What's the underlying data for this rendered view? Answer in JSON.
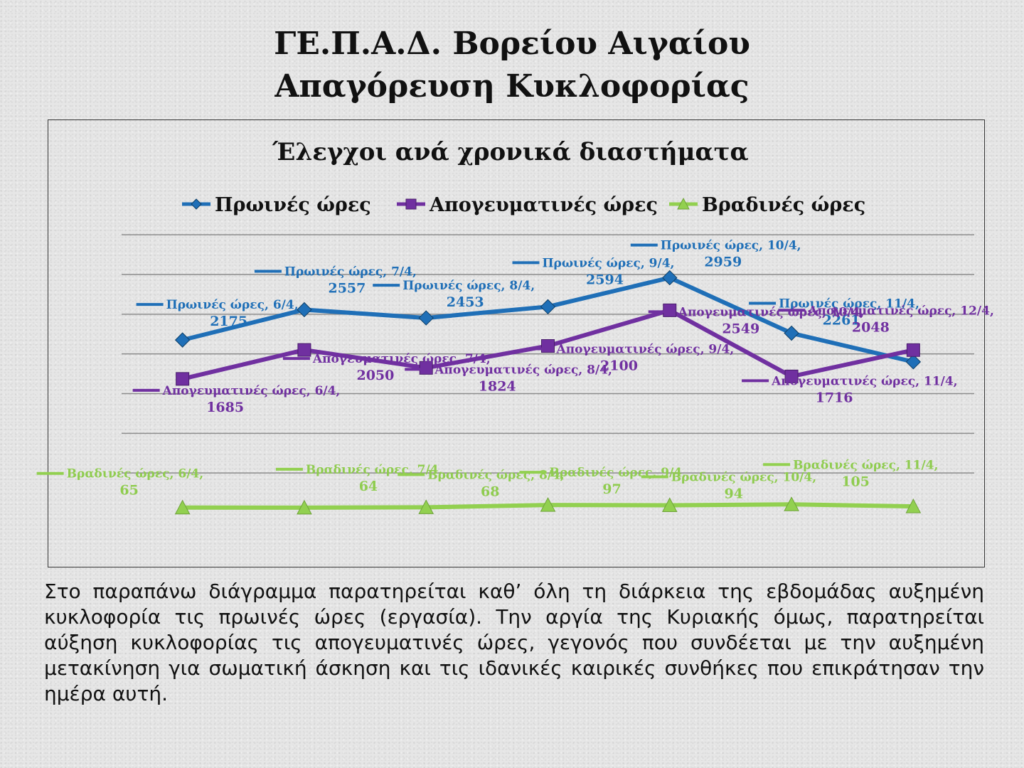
{
  "heading": {
    "line1": "ΓΕ.Π.Α.Δ. Βορείου Αιγαίου",
    "line2": "Απαγόρευση Κυκλοφορίας"
  },
  "chart_data": {
    "type": "line",
    "title": "Έλεγχοι ανά χρονικά διαστήματα",
    "categories": [
      "6/4",
      "7/4",
      "8/4",
      "9/4",
      "10/4",
      "11/4",
      "12/4"
    ],
    "series": [
      {
        "name": "Πρωινές ώρες",
        "color": "#1f6fb7",
        "marker": "diamond",
        "values": [
          2175,
          2557,
          2453,
          2594,
          2959,
          2261,
          1900
        ]
      },
      {
        "name": "Απογευματινές ώρες",
        "color": "#7030a0",
        "marker": "square",
        "values": [
          1685,
          2050,
          1824,
          2100,
          2549,
          1716,
          2048
        ]
      },
      {
        "name": "Βραδινές ώρες",
        "color": "#92d050",
        "marker": "triangle",
        "values": [
          65,
          64,
          68,
          97,
          94,
          105,
          80
        ]
      }
    ],
    "point_label_values": {
      "Πρωινές ώρες": [
        "2175",
        "2557",
        "2453",
        "2594",
        "2959",
        "2261",
        ""
      ],
      "Απογευματινές ώρες": [
        "1685",
        "2050",
        "1824",
        "2100",
        "2549",
        "1716",
        "2048"
      ],
      "Βραδινές ώρες": [
        "65",
        "64",
        "68",
        "97",
        "94",
        "105",
        ""
      ]
    },
    "ylim": [
      0,
      3600
    ],
    "grid": true,
    "legend_position": "top"
  },
  "body_text": "Στο παραπάνω διάγραμμα παρατηρείται καθ’ όλη τη διάρκεια της εβδομάδας αυξημένη κυκλοφορία τις πρωινές ώρες (εργασία). Την αργία της Κυριακής όμως, παρατηρείται αύξηση κυκλοφορίας τις απογευματινές ώρες, γεγονός που συνδέεται με την αυξημένη μετακίνηση για σωματική άσκηση και τις ιδανικές καιρικές συνθήκες που επικράτησαν την ημέρα αυτή."
}
